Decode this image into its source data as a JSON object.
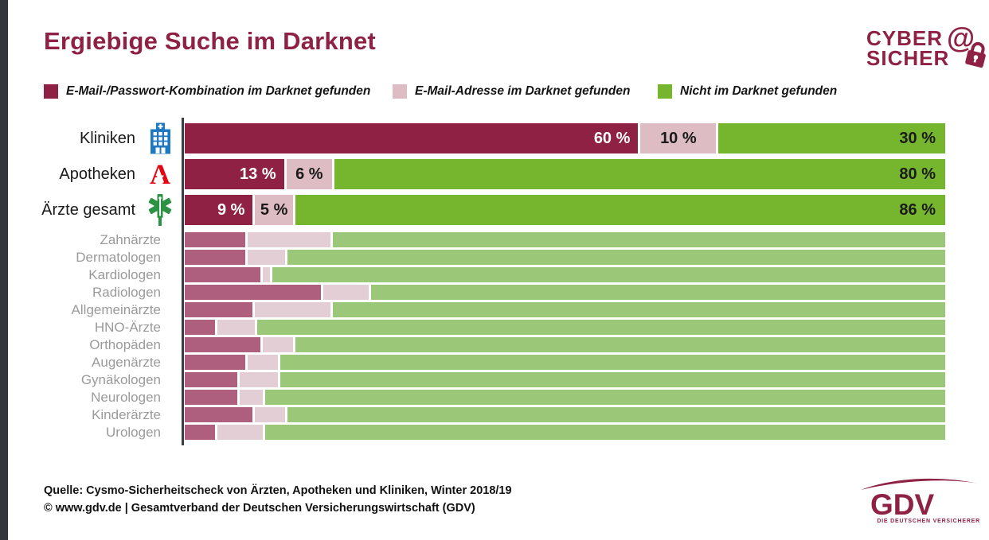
{
  "page": {
    "background": "#ffffff",
    "accent_color": "#8e2144",
    "left_strip_color": "#33373c"
  },
  "header": {
    "title": "Ergiebige Suche im Darknet"
  },
  "brand": {
    "line1": "CYBER",
    "line2": "SICHER",
    "at_symbol": "@",
    "icon": "at-padlock-icon",
    "color": "#8e2144"
  },
  "legend": {
    "items": [
      {
        "icon": "legend-swatch-darkred",
        "color": "#8e2144",
        "label": "E-Mail-/Passwort-Kombination im Darknet gefunden"
      },
      {
        "icon": "legend-swatch-pink",
        "color": "#ddbdc3",
        "label": "E-Mail-Adresse im Darknet gefunden"
      },
      {
        "icon": "legend-swatch-green",
        "color": "#76b52e",
        "label": "Nicht im Darknet gefunden"
      }
    ]
  },
  "chart_data": {
    "type": "bar",
    "orientation": "horizontal",
    "stacked": true,
    "unit": "%",
    "xlim": [
      0,
      100
    ],
    "grid": false,
    "series": [
      "E-Mail-/Passwort-Kombination im Darknet gefunden",
      "E-Mail-Adresse im Darknet gefunden",
      "Nicht im Darknet gefunden"
    ],
    "colors_main": [
      "#8e2144",
      "#ddbdc3",
      "#76b52e"
    ],
    "colors_sub": [
      "#ae5f7d",
      "#e3ced5",
      "#9ac878"
    ],
    "groups": [
      {
        "label": "Kliniken",
        "icon": "hospital-icon",
        "values": [
          60,
          10,
          30
        ],
        "value_labels": [
          "60 %",
          "10 %",
          "30 %"
        ],
        "emphasis": true
      },
      {
        "label": "Apotheken",
        "icon": "pharmacy-icon",
        "values": [
          13,
          6,
          80
        ],
        "value_labels": [
          "13 %",
          "6 %",
          "80 %"
        ],
        "emphasis": true
      },
      {
        "label": "Ärzte gesamt",
        "icon": "star-of-life-icon",
        "values": [
          9,
          5,
          86
        ],
        "value_labels": [
          "9 %",
          "5 %",
          "86 %"
        ],
        "emphasis": true
      },
      {
        "label": "Zahnärzte",
        "values": [
          8,
          11,
          81
        ],
        "emphasis": false
      },
      {
        "label": "Dermatologen",
        "values": [
          8,
          5,
          87
        ],
        "emphasis": false
      },
      {
        "label": "Kardiologen",
        "values": [
          10,
          1,
          89
        ],
        "emphasis": false
      },
      {
        "label": "Radiologen",
        "values": [
          18,
          6,
          76
        ],
        "emphasis": false
      },
      {
        "label": "Allgemeinärzte",
        "values": [
          9,
          10,
          81
        ],
        "emphasis": false
      },
      {
        "label": "HNO-Ärzte",
        "values": [
          4,
          5,
          91
        ],
        "emphasis": false
      },
      {
        "label": "Orthopäden",
        "values": [
          10,
          4,
          86
        ],
        "emphasis": false
      },
      {
        "label": "Augenärzte",
        "values": [
          8,
          4,
          88
        ],
        "emphasis": false
      },
      {
        "label": "Gynäkologen",
        "values": [
          7,
          5,
          88
        ],
        "emphasis": false
      },
      {
        "label": "Neurologen",
        "values": [
          7,
          3,
          90
        ],
        "emphasis": false
      },
      {
        "label": "Kinderärzte",
        "values": [
          9,
          4,
          87
        ],
        "emphasis": false
      },
      {
        "label": "Urologen",
        "values": [
          4,
          6,
          90
        ],
        "emphasis": false
      }
    ]
  },
  "source": {
    "line1": "Quelle: Cysmo-Sicherheitscheck von Ärzten, Apotheken und Kliniken, Winter 2018/19",
    "line2": "© www.gdv.de | Gesamtverband der Deutschen Versicherungswirtschaft (GDV)"
  },
  "footer_logo": {
    "text": "GDV",
    "subtext": "DIE DEUTSCHEN VERSICHERER",
    "icon": "gdv-swoosh-icon"
  }
}
